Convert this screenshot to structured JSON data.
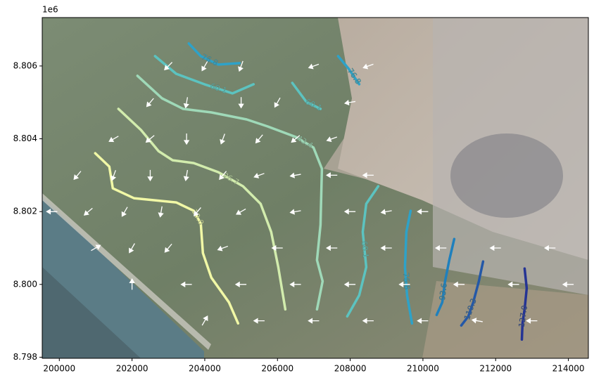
{
  "chart_data": {
    "type": "contour",
    "offset_text": "1e6",
    "xlim": [
      199530,
      214550
    ],
    "ylim": [
      8797970,
      8807330
    ],
    "xticks": [
      200000,
      202000,
      204000,
      206000,
      208000,
      210000,
      212000,
      214000
    ],
    "yticks": [
      {
        "value": 8798000,
        "label": "8.798"
      },
      {
        "value": 8800000,
        "label": "8.800"
      },
      {
        "value": 8802000,
        "label": "8.802"
      },
      {
        "value": 8804000,
        "label": "8.804"
      },
      {
        "value": 8806000,
        "label": "8.806"
      }
    ],
    "contours": [
      {
        "label": "10.0",
        "color": "#f1f8a6",
        "x": [
          200987,
          201375,
          201471,
          202052,
          203214,
          203698,
          203891,
          203949,
          204182,
          204666,
          204917
        ],
        "y": [
          8803604,
          8803237,
          8802638,
          8802368,
          8802252,
          8802020,
          8801672,
          8800861,
          8800185,
          8799509,
          8798929
        ]
      },
      {
        "label": "26.7",
        "color": "#d2ecad",
        "x": [
          201626,
          202246,
          202730,
          203117,
          203698,
          204375,
          205053,
          205537,
          205827,
          206021,
          206215
        ],
        "y": [
          8804822,
          8804242,
          8803662,
          8803411,
          8803334,
          8803083,
          8802696,
          8802213,
          8801441,
          8800475,
          8799315
        ]
      },
      {
        "label": "43.4",
        "color": "#9fd9b8",
        "x": [
          202149,
          202827,
          203407,
          204182,
          205150,
          205731,
          206505,
          206989,
          207221,
          207183,
          207086,
          207241,
          207086
        ],
        "y": [
          8805730,
          8805111,
          8804822,
          8804725,
          8804532,
          8804338,
          8804049,
          8803759,
          8803179,
          8801634,
          8800668,
          8800088,
          8799315
        ]
      },
      {
        "label": "60.1",
        "color": "#5cc3c0",
        "x": [
          202633,
          203214,
          203988,
          204763,
          205343,
          null,
          206408,
          206795,
          207183,
          null,
          208770,
          208441,
          208344,
          208441,
          208247,
          207918
        ],
        "y": [
          8806270,
          8805787,
          8805498,
          8805247,
          8805498,
          null,
          8805536,
          8805015,
          8804822,
          null,
          8802696,
          8802213,
          8801441,
          8800475,
          8799702,
          8799122
        ]
      },
      {
        "label": "76.8",
        "color": "#2ea2c8",
        "x": [
          203562,
          203891,
          204375,
          204956,
          null,
          207667,
          207958,
          208247,
          null,
          209661,
          209544,
          209506,
          209564,
          209700
        ],
        "y": [
          8806618,
          8806270,
          8806039,
          8806077,
          null,
          8806270,
          8805923,
          8805498,
          null,
          8802020,
          8801441,
          8800475,
          8799702,
          8798929
        ]
      },
      {
        "label": "93.6",
        "color": "#1f80bd",
        "x": [
          210861,
          210726,
          210609,
          210532,
          210377
        ],
        "y": [
          8801247,
          8800668,
          8800088,
          8799509,
          8799161
        ]
      },
      {
        "label": "110.3",
        "color": "#2458a7",
        "x": [
          211655,
          211539,
          211384,
          211248,
          211055
        ],
        "y": [
          8800629,
          8800088,
          8799509,
          8799122,
          8798871
        ]
      },
      {
        "label": "127.0",
        "color": "#253494",
        "x": [
          212797,
          212855,
          212797,
          212739,
          212720
        ],
        "y": [
          8800436,
          8799895,
          8799315,
          8798929,
          8798485
        ]
      }
    ],
    "quiver": {
      "x": [
        203000,
        204000,
        205000,
        207000,
        208500,
        202500,
        203500,
        205000,
        206000,
        208000,
        201500,
        202500,
        203500,
        204500,
        205500,
        206500,
        207500,
        200500,
        201500,
        202500,
        203500,
        204500,
        205500,
        206500,
        207500,
        208500,
        199800,
        200800,
        201800,
        202800,
        203800,
        205000,
        206500,
        208000,
        209000,
        210000,
        201000,
        202000,
        203000,
        204500,
        206000,
        207500,
        209000,
        210500,
        212000,
        213500,
        202000,
        203500,
        205000,
        206500,
        208000,
        209500,
        211000,
        212500,
        214000,
        204000,
        205500,
        207000,
        208500,
        210000,
        211500,
        213000
      ],
      "y": [
        8806000,
        8806000,
        8806000,
        8806000,
        8806000,
        8805000,
        8805000,
        8805000,
        8805000,
        8805000,
        8804000,
        8804000,
        8804000,
        8804000,
        8804000,
        8804000,
        8804000,
        8803000,
        8803000,
        8803000,
        8803000,
        8803000,
        8803000,
        8803000,
        8803000,
        8803000,
        8802000,
        8802000,
        8802000,
        8802000,
        8802000,
        8802000,
        8802000,
        8802000,
        8802000,
        8802000,
        8801000,
        8801000,
        8801000,
        8801000,
        8801000,
        8801000,
        8801000,
        8801000,
        8801000,
        8801000,
        8800000,
        8800000,
        8800000,
        8800000,
        8800000,
        8800000,
        8800000,
        8800000,
        8800000,
        8799000,
        8799000,
        8799000,
        8799000,
        8799000,
        8799000,
        8799000
      ],
      "angle": [
        225,
        240,
        250,
        200,
        200,
        230,
        260,
        270,
        240,
        190,
        210,
        220,
        270,
        250,
        230,
        220,
        200,
        230,
        250,
        270,
        260,
        230,
        200,
        190,
        180,
        180,
        180,
        220,
        240,
        260,
        230,
        210,
        190,
        180,
        190,
        180,
        30,
        240,
        230,
        200,
        180,
        180,
        180,
        180,
        180,
        180,
        90,
        180,
        180,
        180,
        180,
        180,
        180,
        180,
        180,
        60,
        180,
        180,
        180,
        180,
        170,
        180
      ]
    }
  }
}
